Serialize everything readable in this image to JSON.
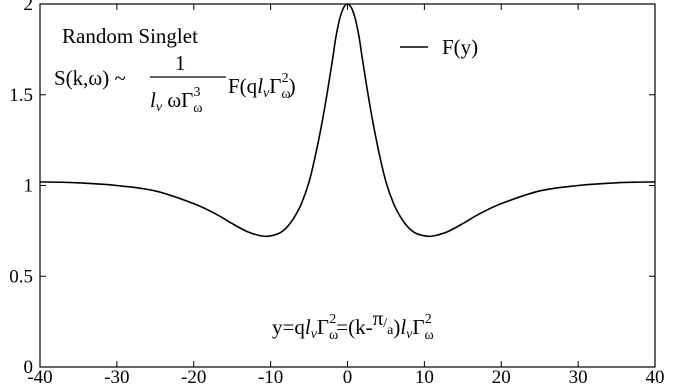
{
  "chart_data": {
    "type": "line",
    "xlim": [
      -40,
      40
    ],
    "ylim": [
      0,
      2
    ],
    "x_ticks": [
      "-40",
      "-30",
      "-20",
      "-10",
      "0",
      "10",
      "20",
      "30",
      "40"
    ],
    "y_ticks": [
      "0",
      "0.5",
      "1",
      "1.5",
      "2"
    ],
    "x_tick_values": [
      -40,
      -30,
      -20,
      -10,
      0,
      10,
      20,
      30,
      40
    ],
    "y_tick_values": [
      0,
      0.5,
      1,
      1.5,
      2
    ],
    "grid": false,
    "legend": "top-right",
    "series": [
      {
        "name": "F(y)",
        "color": "#000000",
        "x": [
          -40,
          -35,
          -30,
          -25,
          -20,
          -17,
          -15,
          -13,
          -11.5,
          -10.5,
          -9,
          -8,
          -7,
          -6,
          -5,
          -4,
          -3,
          -2,
          -1.5,
          -1,
          -0.5,
          0,
          0.5,
          1,
          1.5,
          2,
          3,
          4,
          5,
          6,
          7,
          8,
          9,
          10.5,
          11.5,
          13,
          15,
          17,
          20,
          25,
          30,
          35,
          40
        ],
        "y": [
          1.02,
          1.015,
          1.0,
          0.97,
          0.9,
          0.84,
          0.79,
          0.745,
          0.725,
          0.72,
          0.735,
          0.765,
          0.82,
          0.9,
          1.02,
          1.2,
          1.42,
          1.68,
          1.82,
          1.92,
          1.98,
          2.0,
          1.98,
          1.92,
          1.82,
          1.68,
          1.42,
          1.2,
          1.02,
          0.9,
          0.82,
          0.765,
          0.735,
          0.72,
          0.725,
          0.745,
          0.79,
          0.84,
          0.9,
          0.97,
          1.0,
          1.015,
          1.02
        ]
      }
    ],
    "annotations": {
      "title_line": "Random Singlet",
      "formula_lhs": "S(k,ω) ~",
      "formula_num": "1",
      "formula_den": "l",
      "formula_den_v": "v",
      "formula_den_rest": " ωΓ",
      "formula_den_sub": "ω",
      "formula_den_sup": "3",
      "formula_F": "F(q",
      "formula_F_l": "l",
      "formula_F_v": "v",
      "formula_F_gamma": "Γ",
      "formula_F_sub": "ω",
      "formula_F_sup": "2",
      "formula_F_close": ")",
      "y_def_a": "y=q",
      "y_def_l": "l",
      "y_def_v": "v",
      "y_def_gamma": "Γ",
      "y_def_sub": "ω",
      "y_def_sup": "2",
      "y_def_b": "=(k-",
      "y_def_pi": "π",
      "y_def_slash": "/",
      "y_def_a2": "a",
      "y_def_c": ")",
      "y_def_l2": "l",
      "y_def_v2": "v",
      "y_def_gamma2": "Γ",
      "y_def_sub2": "ω",
      "y_def_sup2": "2"
    }
  }
}
